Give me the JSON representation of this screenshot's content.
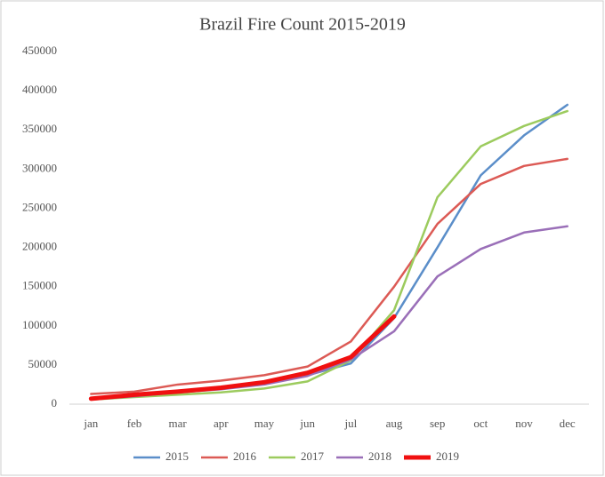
{
  "chart_data": {
    "type": "line",
    "title": "Brazil Fire Count 2015-2019",
    "categories": [
      "jan",
      "feb",
      "mar",
      "apr",
      "may",
      "jun",
      "jul",
      "aug",
      "sep",
      "oct",
      "nov",
      "dec"
    ],
    "series": [
      {
        "name": "2015",
        "color": "#5b8ec9",
        "width": 2.5,
        "values": [
          7000,
          12000,
          16000,
          20000,
          26000,
          37000,
          52000,
          110000,
          200000,
          292000,
          343000,
          382000
        ]
      },
      {
        "name": "2016",
        "color": "#dc5a55",
        "width": 2.5,
        "values": [
          13000,
          16000,
          25000,
          30000,
          37000,
          48000,
          80000,
          150000,
          230000,
          281000,
          304000,
          313000
        ]
      },
      {
        "name": "2017",
        "color": "#9ccb5e",
        "width": 2.5,
        "values": [
          6000,
          9000,
          12000,
          15000,
          20000,
          29000,
          56000,
          120000,
          264000,
          329000,
          355000,
          374000
        ]
      },
      {
        "name": "2018",
        "color": "#9a6fb8",
        "width": 2.5,
        "values": [
          6000,
          10000,
          15000,
          19000,
          25000,
          36000,
          57000,
          93000,
          163000,
          198000,
          219000,
          227000
        ]
      },
      {
        "name": "2019",
        "color": "#f01010",
        "width": 5,
        "values": [
          7000,
          12000,
          16000,
          21000,
          28000,
          40000,
          60000,
          112000,
          null,
          null,
          null,
          null
        ]
      }
    ],
    "ylim": [
      0,
      450000
    ],
    "yticks": [
      0,
      50000,
      100000,
      150000,
      200000,
      250000,
      300000,
      350000,
      400000,
      450000
    ],
    "legend": "bottom"
  }
}
